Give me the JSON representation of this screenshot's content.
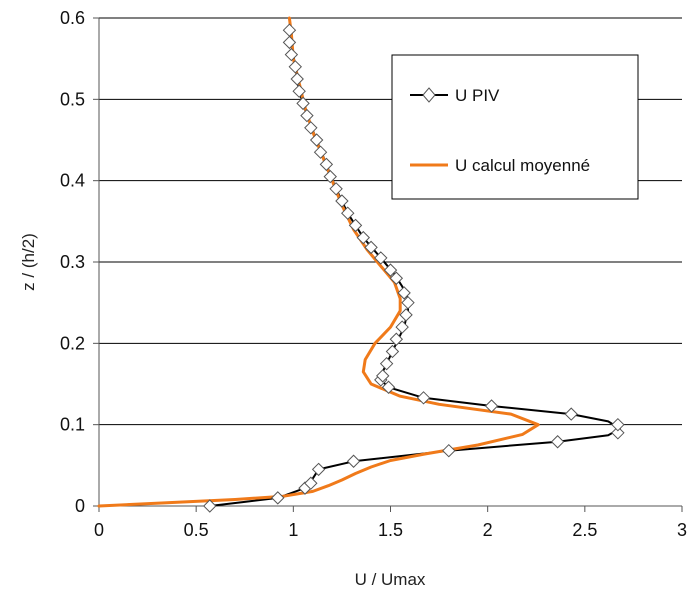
{
  "chart_data": {
    "type": "line",
    "title": "",
    "xlabel": "U / Umax",
    "ylabel": "z / (h/2)",
    "xlim": [
      0,
      3
    ],
    "ylim": [
      0,
      0.6
    ],
    "xticks": [
      "0",
      "0.5",
      "1",
      "1.5",
      "2",
      "2.5",
      "3"
    ],
    "yticks": [
      "0",
      "0.1",
      "0.2",
      "0.3",
      "0.4",
      "0.5",
      "0.6"
    ],
    "grid": "horizontal",
    "legend_position": "top-right",
    "colors": {
      "piv": "#000000",
      "calc": "#f07a1a"
    },
    "series": [
      {
        "name": "U PIV",
        "marker": "diamond",
        "points": [
          [
            0.57,
            0.0
          ],
          [
            0.92,
            0.01
          ],
          [
            1.06,
            0.022
          ],
          [
            1.09,
            0.028
          ],
          [
            1.13,
            0.045
          ],
          [
            1.31,
            0.055
          ],
          [
            1.8,
            0.068
          ],
          [
            2.36,
            0.079
          ],
          [
            2.67,
            0.09
          ],
          [
            2.67,
            0.1
          ],
          [
            2.43,
            0.113
          ],
          [
            2.02,
            0.123
          ],
          [
            1.67,
            0.133
          ],
          [
            1.49,
            0.146
          ],
          [
            1.45,
            0.155
          ],
          [
            1.46,
            0.16
          ],
          [
            1.48,
            0.175
          ],
          [
            1.51,
            0.19
          ],
          [
            1.53,
            0.205
          ],
          [
            1.56,
            0.22
          ],
          [
            1.58,
            0.235
          ],
          [
            1.59,
            0.25
          ],
          [
            1.57,
            0.262
          ],
          [
            1.53,
            0.28
          ],
          [
            1.5,
            0.29
          ],
          [
            1.45,
            0.305
          ],
          [
            1.4,
            0.318
          ],
          [
            1.36,
            0.33
          ],
          [
            1.32,
            0.345
          ],
          [
            1.28,
            0.36
          ],
          [
            1.25,
            0.375
          ],
          [
            1.22,
            0.39
          ],
          [
            1.19,
            0.405
          ],
          [
            1.17,
            0.42
          ],
          [
            1.14,
            0.435
          ],
          [
            1.12,
            0.45
          ],
          [
            1.09,
            0.465
          ],
          [
            1.07,
            0.48
          ],
          [
            1.05,
            0.495
          ],
          [
            1.03,
            0.51
          ],
          [
            1.02,
            0.525
          ],
          [
            1.01,
            0.54
          ],
          [
            0.99,
            0.555
          ],
          [
            0.98,
            0.57
          ],
          [
            0.98,
            0.585
          ]
        ],
        "line_points": [
          [
            0.57,
            0.0
          ],
          [
            0.75,
            0.005
          ],
          [
            0.92,
            0.01
          ],
          [
            1.06,
            0.022
          ],
          [
            1.09,
            0.03
          ],
          [
            1.13,
            0.045
          ],
          [
            1.31,
            0.055
          ],
          [
            1.8,
            0.068
          ],
          [
            2.36,
            0.079
          ],
          [
            2.62,
            0.087
          ],
          [
            2.68,
            0.095
          ],
          [
            2.62,
            0.104
          ],
          [
            2.43,
            0.113
          ],
          [
            2.02,
            0.123
          ],
          [
            1.67,
            0.133
          ],
          [
            1.49,
            0.146
          ],
          [
            1.45,
            0.155
          ],
          [
            1.46,
            0.165
          ],
          [
            1.49,
            0.18
          ],
          [
            1.53,
            0.2
          ],
          [
            1.57,
            0.22
          ],
          [
            1.59,
            0.24
          ],
          [
            1.59,
            0.255
          ],
          [
            1.56,
            0.27
          ],
          [
            1.52,
            0.285
          ],
          [
            1.45,
            0.305
          ],
          [
            1.36,
            0.33
          ],
          [
            1.28,
            0.36
          ],
          [
            1.22,
            0.39
          ],
          [
            1.17,
            0.42
          ],
          [
            1.12,
            0.45
          ],
          [
            1.07,
            0.48
          ],
          [
            1.03,
            0.51
          ],
          [
            1.01,
            0.54
          ],
          [
            0.99,
            0.57
          ],
          [
            0.98,
            0.6
          ]
        ]
      },
      {
        "name": "U calcul moyenné",
        "marker": "none",
        "points": [
          [
            0.0,
            0.0
          ],
          [
            0.35,
            0.004
          ],
          [
            0.7,
            0.008
          ],
          [
            0.95,
            0.012
          ],
          [
            1.1,
            0.018
          ],
          [
            1.18,
            0.025
          ],
          [
            1.25,
            0.032
          ],
          [
            1.32,
            0.04
          ],
          [
            1.4,
            0.048
          ],
          [
            1.5,
            0.056
          ],
          [
            1.68,
            0.064
          ],
          [
            1.95,
            0.075
          ],
          [
            2.18,
            0.088
          ],
          [
            2.26,
            0.1
          ],
          [
            2.12,
            0.113
          ],
          [
            1.75,
            0.125
          ],
          [
            1.55,
            0.135
          ],
          [
            1.4,
            0.15
          ],
          [
            1.36,
            0.165
          ],
          [
            1.37,
            0.18
          ],
          [
            1.42,
            0.2
          ],
          [
            1.5,
            0.22
          ],
          [
            1.55,
            0.24
          ],
          [
            1.55,
            0.255
          ],
          [
            1.52,
            0.275
          ],
          [
            1.45,
            0.295
          ],
          [
            1.38,
            0.315
          ],
          [
            1.31,
            0.34
          ],
          [
            1.25,
            0.37
          ],
          [
            1.2,
            0.4
          ],
          [
            1.15,
            0.43
          ],
          [
            1.1,
            0.46
          ],
          [
            1.06,
            0.49
          ],
          [
            1.03,
            0.52
          ],
          [
            1.0,
            0.55
          ],
          [
            0.99,
            0.58
          ],
          [
            0.98,
            0.6
          ]
        ]
      }
    ]
  }
}
